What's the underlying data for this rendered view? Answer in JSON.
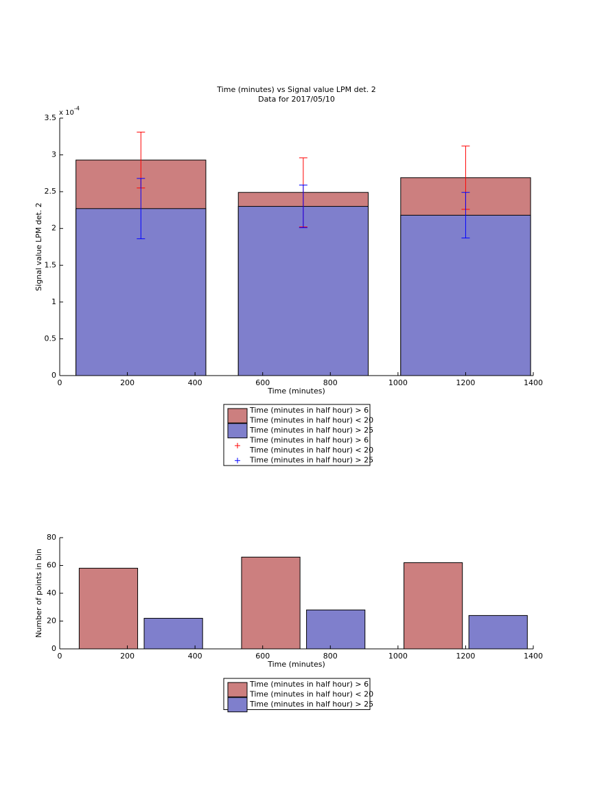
{
  "chart_data": [
    {
      "type": "bar",
      "barmode": "overlay",
      "title": "Time (minutes) vs Signal value LPM det. 2",
      "subtitle": "Data for 2017/05/10",
      "x_label": "Time (minutes)",
      "y_label": "Signal value LPM det. 2",
      "y_scale_label": "x 10",
      "y_scale_exponent": "-4",
      "x": [
        240,
        720,
        1200
      ],
      "xlim": [
        0,
        1400
      ],
      "xticks": [
        0,
        200,
        400,
        600,
        800,
        1000,
        1200,
        1400
      ],
      "ylim": [
        0,
        3.5
      ],
      "yticks": [
        0,
        0.5,
        1,
        1.5,
        2,
        2.5,
        3,
        3.5
      ],
      "series": [
        {
          "name": "Time (minutes in half hour) > 6\nTime (minutes in half hour) < 20",
          "color": "#cc7f7f",
          "values": [
            2.93,
            2.49,
            2.69
          ]
        },
        {
          "name": "Time (minutes in half hour) > 25",
          "color": "#7f7fcc",
          "values": [
            2.27,
            2.3,
            2.18
          ]
        }
      ],
      "errorbar_series": [
        {
          "name": "Time (minutes in half hour) > 6\nTime (minutes in half hour) < 20",
          "color": "#ff0000",
          "values": [
            2.93,
            2.49,
            2.69
          ],
          "errors": [
            0.38,
            0.47,
            0.43
          ]
        },
        {
          "name": "Time (minutes in half hour) > 25",
          "color": "#0000ff",
          "values": [
            2.27,
            2.3,
            2.18
          ],
          "errors": [
            0.41,
            0.29,
            0.31
          ]
        }
      ]
    },
    {
      "type": "bar",
      "barmode": "group",
      "x_label": "Time (minutes)",
      "y_label": "Number of points in bin",
      "x": [
        240,
        720,
        1200
      ],
      "xlim": [
        0,
        1400
      ],
      "xticks": [
        0,
        200,
        400,
        600,
        800,
        1000,
        1200,
        1400
      ],
      "ylim": [
        0,
        80
      ],
      "yticks": [
        0,
        20,
        40,
        60,
        80
      ],
      "series": [
        {
          "name": "Time (minutes in half hour) > 6\nTime (minutes in half hour) < 20",
          "color": "#cc7f7f",
          "values": [
            58,
            66,
            62
          ]
        },
        {
          "name": "Time (minutes in half hour) > 25",
          "color": "#7f7fcc",
          "values": [
            22,
            28,
            24
          ]
        }
      ]
    }
  ]
}
